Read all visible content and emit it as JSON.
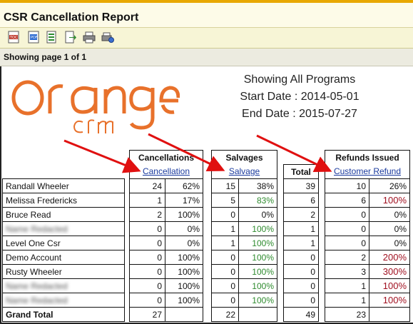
{
  "window": {
    "title": "CSR Cancellation Report"
  },
  "toolbar": {
    "icons": [
      "toc-icon",
      "pdf-icon",
      "export-icon",
      "export-arrow-icon",
      "print-icon",
      "settings-print-icon"
    ]
  },
  "pager": {
    "label": "Showing page 1 of 1"
  },
  "logo": {
    "word": "orange",
    "sub": "crm"
  },
  "summary": {
    "programs": "Showing All Programs",
    "start_date": "Start Date : 2014-05-01",
    "end_date": "End Date : 2015-07-27"
  },
  "headers": {
    "cancellations": "Cancellations",
    "cancellation_link": "Cancellation",
    "salvages": "Salvages",
    "salvage_link": "Salvage",
    "total": "Total",
    "refunds": "Refunds Issued",
    "refund_link": "Customer Refund"
  },
  "rows": [
    {
      "name": "Randall Wheeler",
      "c": "24",
      "cp": "62%",
      "s": "15",
      "sp": "38%",
      "t": "39",
      "r": "10",
      "rp": "26%"
    },
    {
      "name": "Melissa Fredericks",
      "c": "1",
      "cp": "17%",
      "s": "5",
      "sp": "83%",
      "t": "6",
      "r": "6",
      "rp": "100%"
    },
    {
      "name": "Bruce Read",
      "c": "2",
      "cp": "100%",
      "s": "0",
      "sp": "0%",
      "t": "2",
      "r": "0",
      "rp": "0%"
    },
    {
      "name": "Name Redacted",
      "c": "0",
      "cp": "0%",
      "s": "1",
      "sp": "100%",
      "t": "1",
      "r": "0",
      "rp": "0%"
    },
    {
      "name": "Level One Csr",
      "c": "0",
      "cp": "0%",
      "s": "1",
      "sp": "100%",
      "t": "1",
      "r": "0",
      "rp": "0%"
    },
    {
      "name": "Demo Account",
      "c": "0",
      "cp": "100%",
      "s": "0",
      "sp": "100%",
      "t": "0",
      "r": "2",
      "rp": "200%"
    },
    {
      "name": "Rusty Wheeler",
      "c": "0",
      "cp": "100%",
      "s": "0",
      "sp": "100%",
      "t": "0",
      "r": "3",
      "rp": "300%"
    },
    {
      "name": "Name Redacted",
      "c": "0",
      "cp": "100%",
      "s": "0",
      "sp": "100%",
      "t": "0",
      "r": "1",
      "rp": "100%"
    },
    {
      "name": "Name Redacted",
      "c": "0",
      "cp": "100%",
      "s": "0",
      "sp": "100%",
      "t": "0",
      "r": "1",
      "rp": "100%"
    }
  ],
  "grand_total": {
    "label": "Grand Total",
    "c": "27",
    "s": "22",
    "t": "49",
    "r": "23"
  },
  "colors": {
    "accent_orange": "#e8712b",
    "arrow_red": "#e01010",
    "link_blue": "#1a3a9e"
  }
}
